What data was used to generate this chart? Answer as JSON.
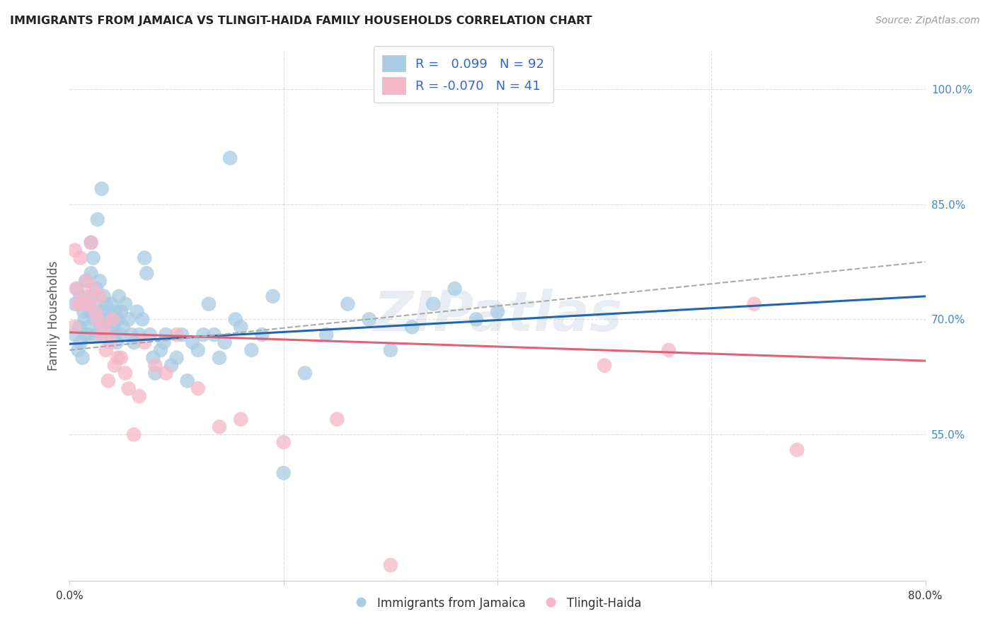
{
  "title": "IMMIGRANTS FROM JAMAICA VS TLINGIT-HAIDA FAMILY HOUSEHOLDS CORRELATION CHART",
  "source": "Source: ZipAtlas.com",
  "ylabel": "Family Households",
  "right_yticks": [
    "100.0%",
    "85.0%",
    "70.0%",
    "55.0%"
  ],
  "right_ytick_vals": [
    1.0,
    0.85,
    0.7,
    0.55
  ],
  "xlim": [
    0.0,
    0.8
  ],
  "ylim": [
    0.36,
    1.05
  ],
  "legend1_r": "0.099",
  "legend1_n": "92",
  "legend2_r": "-0.070",
  "legend2_n": "41",
  "blue_color": "#a8cce4",
  "pink_color": "#f4b8c8",
  "blue_line_color": "#2166ac",
  "pink_line_color": "#e0607a",
  "dashed_line_color": "#aaaaaa",
  "title_color": "#222222",
  "right_axis_color": "#4488cc",
  "watermark": "ZIPatlas",
  "blue_scatter_x": [
    0.005,
    0.005,
    0.007,
    0.008,
    0.009,
    0.01,
    0.01,
    0.012,
    0.013,
    0.014,
    0.015,
    0.015,
    0.016,
    0.017,
    0.018,
    0.019,
    0.02,
    0.02,
    0.021,
    0.022,
    0.023,
    0.024,
    0.025,
    0.025,
    0.026,
    0.027,
    0.028,
    0.029,
    0.03,
    0.03,
    0.031,
    0.032,
    0.033,
    0.034,
    0.035,
    0.036,
    0.037,
    0.038,
    0.039,
    0.04,
    0.041,
    0.042,
    0.043,
    0.044,
    0.045,
    0.046,
    0.047,
    0.048,
    0.05,
    0.052,
    0.055,
    0.058,
    0.06,
    0.063,
    0.065,
    0.068,
    0.07,
    0.072,
    0.075,
    0.078,
    0.08,
    0.085,
    0.088,
    0.09,
    0.095,
    0.1,
    0.105,
    0.11,
    0.115,
    0.12,
    0.125,
    0.13,
    0.135,
    0.14,
    0.145,
    0.15,
    0.155,
    0.16,
    0.17,
    0.18,
    0.19,
    0.2,
    0.22,
    0.24,
    0.26,
    0.28,
    0.3,
    0.32,
    0.34,
    0.36,
    0.38,
    0.4
  ],
  "blue_scatter_y": [
    0.68,
    0.72,
    0.74,
    0.66,
    0.69,
    0.67,
    0.73,
    0.65,
    0.71,
    0.7,
    0.68,
    0.75,
    0.72,
    0.69,
    0.68,
    0.71,
    0.8,
    0.76,
    0.73,
    0.78,
    0.7,
    0.72,
    0.74,
    0.68,
    0.83,
    0.7,
    0.75,
    0.69,
    0.87,
    0.68,
    0.71,
    0.73,
    0.69,
    0.72,
    0.71,
    0.7,
    0.69,
    0.68,
    0.72,
    0.7,
    0.69,
    0.68,
    0.71,
    0.67,
    0.7,
    0.73,
    0.68,
    0.71,
    0.69,
    0.72,
    0.7,
    0.68,
    0.67,
    0.71,
    0.68,
    0.7,
    0.78,
    0.76,
    0.68,
    0.65,
    0.63,
    0.66,
    0.67,
    0.68,
    0.64,
    0.65,
    0.68,
    0.62,
    0.67,
    0.66,
    0.68,
    0.72,
    0.68,
    0.65,
    0.67,
    0.91,
    0.7,
    0.69,
    0.66,
    0.68,
    0.73,
    0.5,
    0.63,
    0.68,
    0.72,
    0.7,
    0.66,
    0.69,
    0.72,
    0.74,
    0.7,
    0.71
  ],
  "pink_scatter_x": [
    0.004,
    0.005,
    0.006,
    0.008,
    0.01,
    0.012,
    0.014,
    0.016,
    0.018,
    0.02,
    0.022,
    0.024,
    0.026,
    0.028,
    0.03,
    0.032,
    0.034,
    0.036,
    0.038,
    0.04,
    0.042,
    0.045,
    0.048,
    0.052,
    0.055,
    0.06,
    0.065,
    0.07,
    0.08,
    0.09,
    0.1,
    0.12,
    0.14,
    0.16,
    0.2,
    0.25,
    0.3,
    0.5,
    0.56,
    0.64,
    0.68
  ],
  "pink_scatter_y": [
    0.69,
    0.79,
    0.74,
    0.72,
    0.78,
    0.72,
    0.73,
    0.75,
    0.72,
    0.8,
    0.74,
    0.71,
    0.7,
    0.73,
    0.68,
    0.69,
    0.66,
    0.62,
    0.67,
    0.7,
    0.64,
    0.65,
    0.65,
    0.63,
    0.61,
    0.55,
    0.6,
    0.67,
    0.64,
    0.63,
    0.68,
    0.61,
    0.56,
    0.57,
    0.54,
    0.57,
    0.38,
    0.64,
    0.66,
    0.72,
    0.53
  ],
  "blue_trend_x": [
    0.0,
    0.8
  ],
  "blue_trend_y": [
    0.668,
    0.73
  ],
  "pink_trend_x": [
    0.0,
    0.8
  ],
  "pink_trend_y": [
    0.683,
    0.646
  ],
  "dashed_trend_x": [
    0.0,
    0.8
  ],
  "dashed_trend_y": [
    0.66,
    0.775
  ]
}
